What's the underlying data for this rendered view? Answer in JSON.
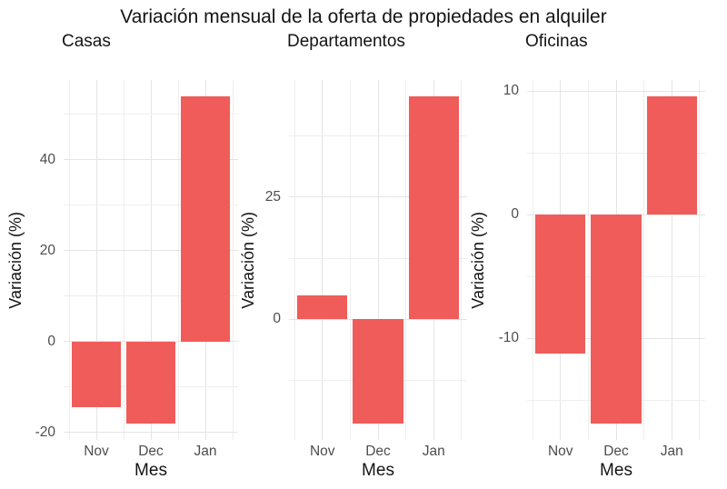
{
  "chart_data": {
    "type": "bar",
    "title": "Variación mensual de la oferta de propiedades en alquiler",
    "xlabel": "Mes",
    "ylabel": "Variación (%)",
    "categories": [
      "Nov",
      "Dec",
      "Jan"
    ],
    "facets": [
      {
        "label": "Casas",
        "values": [
          -14.5,
          -18.1,
          53.9
        ],
        "yticks": [
          -20,
          0,
          20,
          40
        ],
        "yminor": [
          -10,
          10,
          30,
          50
        ],
        "ylim": [
          -21.7,
          57.5
        ]
      },
      {
        "label": "Departamentos",
        "values": [
          5,
          -21.3,
          45.6
        ],
        "yticks": [
          0,
          25
        ],
        "yminor": [
          -12.5,
          12.5,
          37.5
        ],
        "ylim": [
          -24.6,
          48.9
        ]
      },
      {
        "label": "Oficinas",
        "values": [
          -11.2,
          -16.9,
          9.6
        ],
        "yticks": [
          -10,
          0,
          10
        ],
        "yminor": [
          -15,
          -5,
          5
        ],
        "ylim": [
          -18.2,
          10.9
        ]
      }
    ],
    "legend": "none",
    "grid": true,
    "bar_color": "#ef5c59",
    "grid_major_color": "#e4e4e4",
    "grid_minor_color": "#eeeeee",
    "background": "#ffffff",
    "text_color": "#141414",
    "tick_text_color": "#4d4d4d"
  }
}
